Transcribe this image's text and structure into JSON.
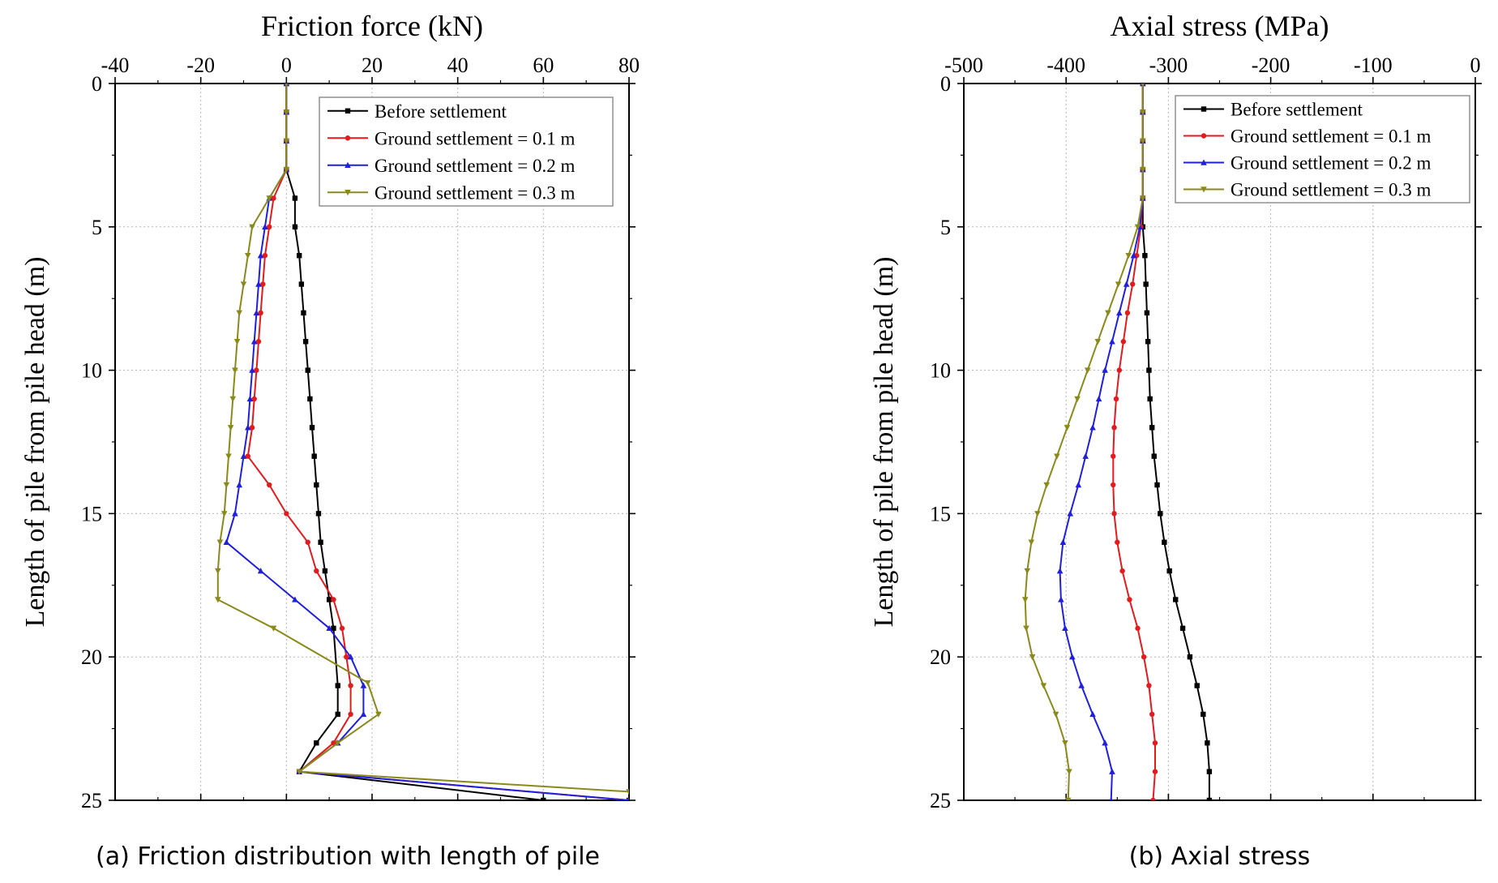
{
  "chart_data": [
    {
      "type": "line",
      "title": "Friction force (kN)",
      "xlabel": "",
      "ylabel": "Length of pile from pile head (m)",
      "caption": "(a) Friction distribution with length of pile",
      "xlim": [
        -40,
        80
      ],
      "ylim": [
        0,
        25
      ],
      "x_ticks": [
        -40,
        -20,
        0,
        20,
        40,
        60,
        80
      ],
      "y_ticks": [
        0,
        5,
        10,
        15,
        20,
        25
      ],
      "x_axis_position": "top",
      "y_reversed": true,
      "grid": true,
      "legend_position": "top-right",
      "series": [
        {
          "name": "Before settlement",
          "color": "#000000",
          "marker": "square",
          "x": [
            0,
            0,
            0,
            0,
            2,
            2,
            3,
            3.5,
            4,
            4.5,
            5,
            5.5,
            6,
            6.5,
            7,
            7.5,
            8,
            9,
            10,
            11,
            12,
            12,
            7,
            3,
            60,
            80
          ],
          "y": [
            0,
            1,
            2,
            3,
            4,
            5,
            6,
            7,
            8,
            9,
            10,
            11,
            12,
            13,
            14,
            15,
            16,
            17,
            18,
            19,
            21,
            22,
            23,
            24,
            25,
            25
          ]
        },
        {
          "name": "Ground settlement = 0.1 m",
          "color": "#e41a1c",
          "marker": "circle",
          "x": [
            0,
            0,
            0,
            0,
            -3,
            -4,
            -5,
            -5.5,
            -6,
            -6.5,
            -7,
            -7.5,
            -8,
            -9,
            -4,
            0,
            5,
            7,
            11,
            13,
            14,
            15,
            15,
            11,
            3,
            80
          ],
          "y": [
            0,
            1,
            2,
            3,
            4,
            5,
            6,
            7,
            8,
            9,
            10,
            11,
            12,
            13,
            14,
            15,
            16,
            17,
            18,
            19,
            20,
            21,
            22,
            23,
            24,
            25
          ]
        },
        {
          "name": "Ground settlement = 0.2 m",
          "color": "#1f1fe0",
          "marker": "triangle",
          "x": [
            0,
            0,
            0,
            0,
            -4,
            -5,
            -6,
            -6.5,
            -7,
            -7.5,
            -8,
            -8.5,
            -9,
            -10,
            -11,
            -12,
            -14,
            -6,
            2,
            10,
            15,
            18,
            18,
            12,
            3,
            80
          ],
          "y": [
            0,
            1,
            2,
            3,
            4,
            5,
            6,
            7,
            8,
            9,
            10,
            11,
            12,
            13,
            14,
            15,
            16,
            17,
            18,
            19,
            20,
            21,
            22,
            23,
            24,
            25
          ]
        },
        {
          "name": "Ground settlement = 0.3 m",
          "color": "#8a8a1a",
          "marker": "down-triangle",
          "x": [
            0,
            0,
            0,
            0,
            -4,
            -8,
            -9,
            -10,
            -11,
            -11.5,
            -12,
            -12.5,
            -13,
            -13.5,
            -14,
            -14.5,
            -15.5,
            -16,
            -16,
            -3,
            19,
            21.5,
            12,
            3,
            80
          ],
          "y": [
            0,
            1,
            2,
            3,
            4,
            5,
            6,
            7,
            8,
            9,
            10,
            11,
            12,
            13,
            14,
            15,
            16,
            17,
            18,
            19,
            20.9,
            22,
            23,
            24,
            24.7
          ]
        }
      ]
    },
    {
      "type": "line",
      "title": "Axial stress (MPa)",
      "xlabel": "",
      "ylabel": "Length of pile from pile head (m)",
      "caption": "(b) Axial stress",
      "xlim": [
        -500,
        0
      ],
      "ylim": [
        0,
        25
      ],
      "x_ticks": [
        -500,
        -400,
        -300,
        -200,
        -100,
        0
      ],
      "y_ticks": [
        0,
        5,
        10,
        15,
        20,
        25
      ],
      "x_axis_position": "top",
      "y_reversed": true,
      "grid": true,
      "legend_position": "top-right",
      "series": [
        {
          "name": "Before settlement",
          "color": "#000000",
          "marker": "square",
          "x": [
            -325,
            -325,
            -325,
            -325,
            -325,
            -325,
            -323,
            -322,
            -321,
            -320,
            -319,
            -318,
            -316,
            -314,
            -311,
            -308,
            -304,
            -299,
            -293,
            -286,
            -279,
            -272,
            -266,
            -262,
            -260,
            -260
          ],
          "y": [
            0,
            1,
            2,
            3,
            4,
            5,
            6,
            7,
            8,
            9,
            10,
            11,
            12,
            13,
            14,
            15,
            16,
            17,
            18,
            19,
            20,
            21,
            22,
            23,
            24,
            25
          ]
        },
        {
          "name": "Ground settlement = 0.1 m",
          "color": "#e41a1c",
          "marker": "circle",
          "x": [
            -325,
            -325,
            -325,
            -325,
            -325,
            -327,
            -331,
            -335,
            -340,
            -344,
            -348,
            -351,
            -353,
            -354,
            -354,
            -353,
            -350,
            -345,
            -338,
            -330,
            -324,
            -319,
            -316,
            -313,
            -313,
            -315
          ],
          "y": [
            0,
            1,
            2,
            3,
            4,
            5,
            6,
            7,
            8,
            9,
            10,
            11,
            12,
            13,
            14,
            15,
            16,
            17,
            18,
            19,
            20,
            21,
            22,
            23,
            24,
            25
          ]
        },
        {
          "name": "Ground settlement = 0.2 m",
          "color": "#1f1fe0",
          "marker": "triangle",
          "x": [
            -325,
            -325,
            -325,
            -325,
            -325,
            -328,
            -334,
            -341,
            -348,
            -355,
            -362,
            -368,
            -374,
            -381,
            -388,
            -396,
            -403,
            -406,
            -405,
            -401,
            -394,
            -385,
            -374,
            -362,
            -355,
            -356
          ],
          "y": [
            0,
            1,
            2,
            3,
            4,
            5,
            6,
            7,
            8,
            9,
            10,
            11,
            12,
            13,
            14,
            15,
            16,
            17,
            18,
            19,
            20,
            21,
            22,
            23,
            24,
            25
          ]
        },
        {
          "name": "Ground settlement = 0.3 m",
          "color": "#8a8a1a",
          "marker": "down-triangle",
          "x": [
            -325,
            -325,
            -325,
            -325,
            -325,
            -330,
            -339,
            -349,
            -359,
            -369,
            -379,
            -389,
            -399,
            -409,
            -419,
            -428,
            -434,
            -438,
            -440,
            -439,
            -433,
            -422,
            -410,
            -401,
            -397,
            -398
          ],
          "y": [
            0,
            1,
            2,
            3,
            4,
            5,
            6,
            7,
            8,
            9,
            10,
            11,
            12,
            13,
            14,
            15,
            16,
            17,
            18,
            19,
            20,
            21,
            22,
            23,
            24,
            25
          ]
        }
      ]
    }
  ]
}
